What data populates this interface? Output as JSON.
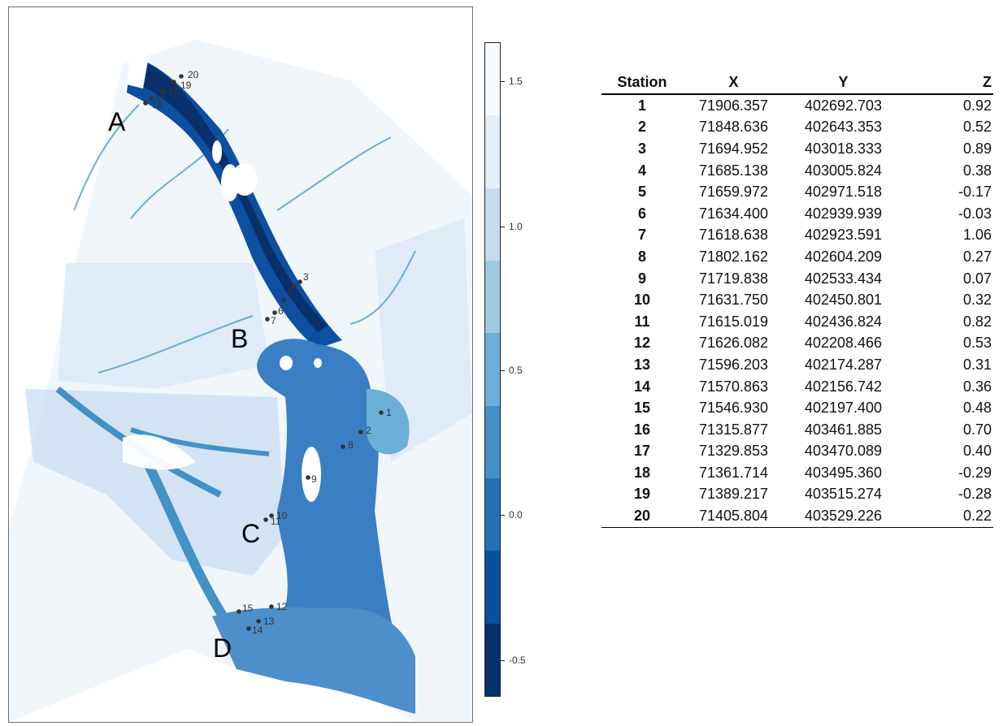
{
  "map": {
    "region_labels": [
      "A",
      "B",
      "C",
      "D"
    ],
    "stations": [
      "1",
      "2",
      "3",
      "4",
      "5",
      "6",
      "7",
      "8",
      "9",
      "10",
      "11",
      "12",
      "13",
      "14",
      "15",
      "16",
      "17",
      "18",
      "19",
      "20"
    ],
    "colors": {
      "deep": "#08306b",
      "channel": "#0d4fa0",
      "basin": "#3a7fc4",
      "flat": "#9ecae1",
      "high": "#dbe9f6",
      "land": "#f7fbff",
      "dot": "#333333"
    }
  },
  "colorbar": {
    "ticks": [
      "1.5",
      "1.0",
      "0.5",
      "0.0",
      "-0.5"
    ],
    "colors": [
      "#f7fbff",
      "#e4eef8",
      "#c6dbef",
      "#9ecae1",
      "#6baed6",
      "#4292c6",
      "#2171b5",
      "#08519c",
      "#08306b"
    ]
  },
  "table": {
    "headers": [
      "Station",
      "X",
      "Y",
      "Z"
    ],
    "rows": [
      [
        "1",
        "71906.357",
        "402692.703",
        "0.92"
      ],
      [
        "2",
        "71848.636",
        "402643.353",
        "0.52"
      ],
      [
        "3",
        "71694.952",
        "403018.333",
        "0.89"
      ],
      [
        "4",
        "71685.138",
        "403005.824",
        "0.38"
      ],
      [
        "5",
        "71659.972",
        "402971.518",
        "-0.17"
      ],
      [
        "6",
        "71634.400",
        "402939.939",
        "-0.03"
      ],
      [
        "7",
        "71618.638",
        "402923.591",
        "1.06"
      ],
      [
        "8",
        "71802.162",
        "402604.209",
        "0.27"
      ],
      [
        "9",
        "71719.838",
        "402533.434",
        "0.07"
      ],
      [
        "10",
        "71631.750",
        "402450.801",
        "0.32"
      ],
      [
        "11",
        "71615.019",
        "402436.824",
        "0.82"
      ],
      [
        "12",
        "71626.082",
        "402208.466",
        "0.53"
      ],
      [
        "13",
        "71596.203",
        "402174.287",
        "0.31"
      ],
      [
        "14",
        "71570.863",
        "402156.742",
        "0.36"
      ],
      [
        "15",
        "71546.930",
        "402197.400",
        "0.48"
      ],
      [
        "16",
        "71315.877",
        "403461.885",
        "0.70"
      ],
      [
        "17",
        "71329.853",
        "403470.089",
        "0.40"
      ],
      [
        "18",
        "71361.714",
        "403495.360",
        "-0.29"
      ],
      [
        "19",
        "71389.217",
        "403515.274",
        "-0.28"
      ],
      [
        "20",
        "71405.804",
        "403529.226",
        "0.22"
      ]
    ]
  }
}
